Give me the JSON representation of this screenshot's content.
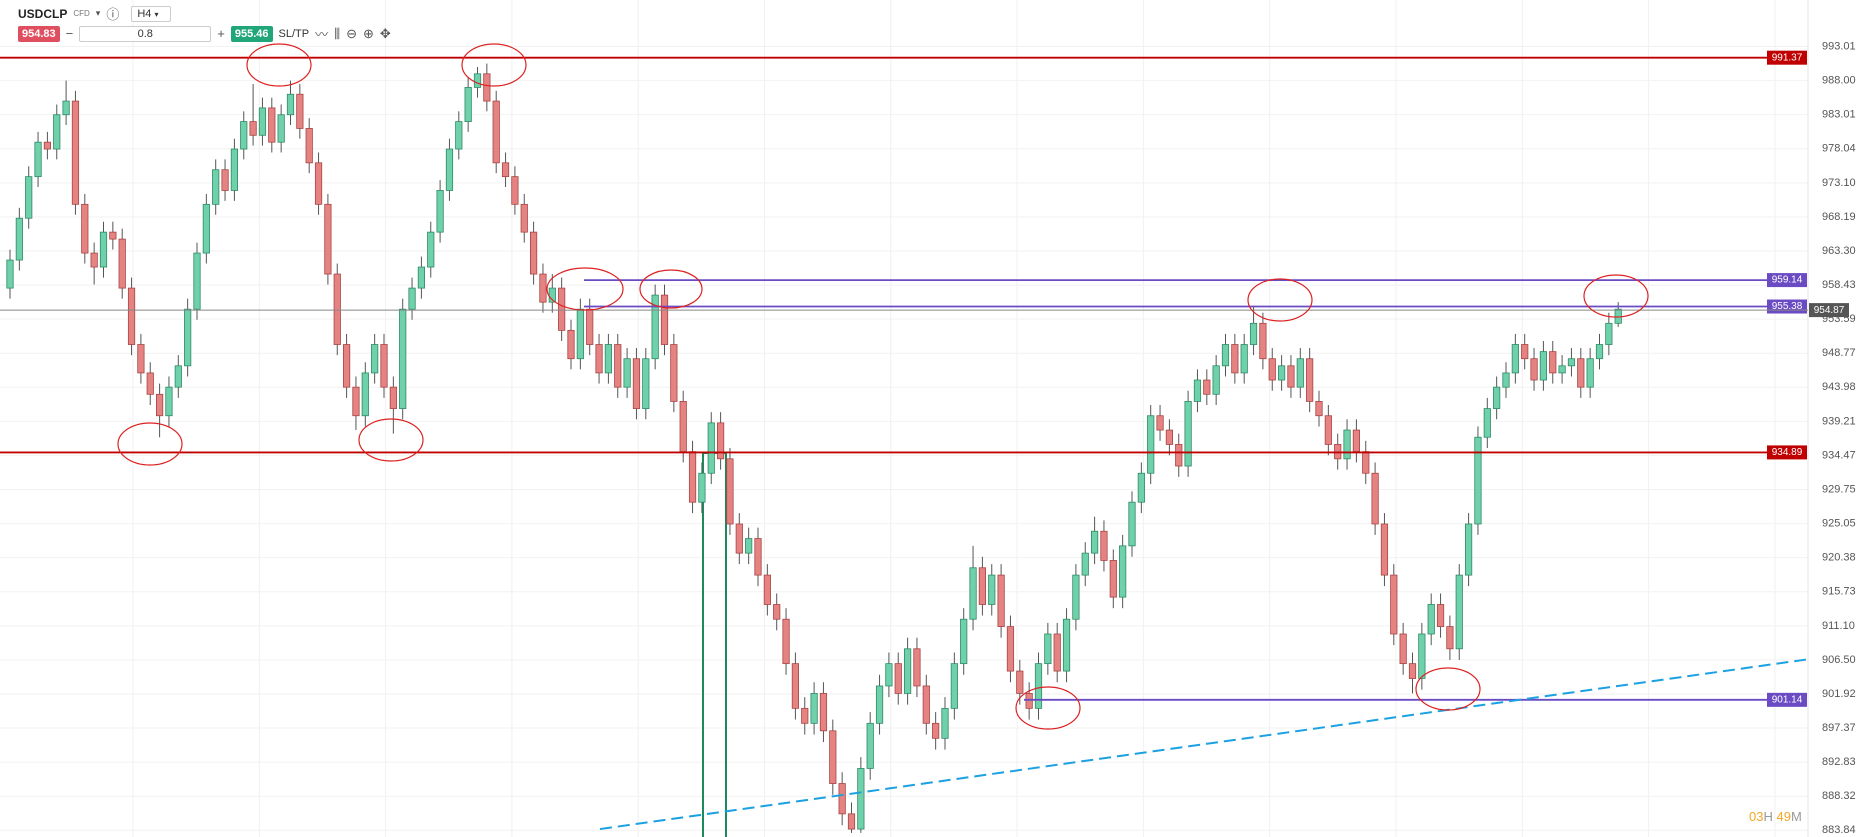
{
  "toolbar": {
    "symbol": "USDCLP",
    "kind": "CFD",
    "timeframe": "H4",
    "sell": "954.83",
    "amount": "0.8",
    "buy": "955.46",
    "sltp": "SL/TP"
  },
  "timer": {
    "hours": "03",
    "h": "H",
    "minutes": "49",
    "m": "M"
  },
  "chart_data": {
    "type": "candlestick",
    "log_scale": true,
    "grid": true,
    "up_color": "#6fd1ab",
    "down_color": "#e58383",
    "ylim": [
      883.22,
      998.42
    ],
    "yticks": [
      993.01,
      {
        "value": 988.0,
        "label": "988.00"
      },
      983.01,
      978.04,
      {
        "value": 973.1,
        "label": "973.10"
      },
      968.19,
      {
        "value": 963.3,
        "label": "963.30"
      },
      958.43,
      953.59,
      948.77,
      943.98,
      939.21,
      934.47,
      929.75,
      925.05,
      920.38,
      915.73,
      {
        "value": 911.1,
        "label": "911.10"
      },
      {
        "value": 906.5,
        "label": "906.50"
      },
      901.92,
      897.37,
      892.83,
      888.32,
      883.84
    ],
    "levels": [
      {
        "value": 991.37,
        "color": "#c00000"
      },
      {
        "value": 959.14,
        "color": "#6a4bc4"
      },
      {
        "value": 955.38,
        "color": "#6a4bc4"
      },
      {
        "value": 934.89,
        "color": "#c00000"
      },
      {
        "value": 901.14,
        "color": "#6a4bc4"
      }
    ],
    "current_price": {
      "value": 954.87,
      "color": "#888888"
    },
    "trendline": {
      "color": "#1ba1e2",
      "values": [
        884.0,
        906.55
      ]
    },
    "candles": [
      [
        958,
        963.5,
        956.5,
        962
      ],
      [
        962,
        969.5,
        960.5,
        968
      ],
      [
        968,
        975.5,
        966.5,
        974
      ],
      [
        974,
        980.5,
        972.5,
        979
      ],
      [
        979,
        980.5,
        976.5,
        978
      ],
      [
        978,
        984.5,
        976.5,
        983
      ],
      [
        983,
        988,
        981.5,
        985
      ],
      [
        985,
        986.5,
        968.5,
        970
      ],
      [
        970,
        971.5,
        961.5,
        963
      ],
      [
        963,
        964.5,
        958.5,
        961
      ],
      [
        961,
        967.5,
        959.5,
        966
      ],
      [
        966,
        967.5,
        963.5,
        965
      ],
      [
        965,
        966.5,
        956.5,
        958
      ],
      [
        958,
        959.5,
        948.5,
        950
      ],
      [
        950,
        951.5,
        944.5,
        946
      ],
      [
        946,
        947.5,
        941.5,
        943
      ],
      [
        943,
        944.5,
        937,
        940
      ],
      [
        940,
        945.5,
        938.5,
        944
      ],
      [
        944,
        948.5,
        942.5,
        947
      ],
      [
        947,
        956.5,
        945.5,
        955
      ],
      [
        955,
        964.5,
        953.5,
        963
      ],
      [
        963,
        971.5,
        961.5,
        970
      ],
      [
        970,
        976.5,
        968.5,
        975
      ],
      [
        975,
        976.5,
        970.5,
        972
      ],
      [
        972,
        979.5,
        970.5,
        978
      ],
      [
        978,
        983.5,
        976.5,
        982
      ],
      [
        982,
        987.5,
        978.5,
        980
      ],
      [
        980,
        985.5,
        978.5,
        984
      ],
      [
        984,
        985.5,
        977.5,
        979
      ],
      [
        979,
        984.5,
        977.5,
        983
      ],
      [
        983,
        988,
        981.5,
        986
      ],
      [
        986,
        987.5,
        979.5,
        981
      ],
      [
        981,
        982.5,
        974.5,
        976
      ],
      [
        976,
        977.5,
        968.5,
        970
      ],
      [
        970,
        971.5,
        958.5,
        960
      ],
      [
        960,
        961.5,
        948.5,
        950
      ],
      [
        950,
        951.5,
        942.5,
        944
      ],
      [
        944,
        945.5,
        938,
        940
      ],
      [
        940,
        947.5,
        938.5,
        946
      ],
      [
        946,
        951.5,
        944.5,
        950
      ],
      [
        950,
        951.5,
        942.5,
        944
      ],
      [
        944,
        945.5,
        937.5,
        941
      ],
      [
        941,
        956.5,
        939.5,
        955
      ],
      [
        955,
        959.5,
        953.5,
        958
      ],
      [
        958,
        962.5,
        956.5,
        961
      ],
      [
        961,
        967.5,
        959.5,
        966
      ],
      [
        966,
        973.5,
        964.5,
        972
      ],
      [
        972,
        979.5,
        970.5,
        978
      ],
      [
        978,
        983.5,
        976.5,
        982
      ],
      [
        982,
        988.5,
        980.5,
        987
      ],
      [
        987,
        990,
        985.5,
        989
      ],
      [
        989,
        990.5,
        983.5,
        985
      ],
      [
        985,
        986.5,
        974.5,
        976
      ],
      [
        976,
        977.5,
        972.5,
        974
      ],
      [
        974,
        975.5,
        968.5,
        970
      ],
      [
        970,
        971.5,
        964.5,
        966
      ],
      [
        966,
        967.5,
        958.5,
        960
      ],
      [
        960,
        961.5,
        954.5,
        956
      ],
      [
        956,
        960,
        954.5,
        958
      ],
      [
        958,
        959.5,
        950.5,
        952
      ],
      [
        952,
        953.5,
        946.5,
        948
      ],
      [
        948,
        956.5,
        946.5,
        955
      ],
      [
        955,
        956.5,
        948.5,
        950
      ],
      [
        950,
        951.5,
        944.5,
        946
      ],
      [
        946,
        951.5,
        944.5,
        950
      ],
      [
        950,
        951.5,
        942.5,
        944
      ],
      [
        944,
        949.5,
        942.5,
        948
      ],
      [
        948,
        949.5,
        939.5,
        941
      ],
      [
        941,
        949.5,
        939.5,
        948
      ],
      [
        948,
        958.5,
        946.5,
        957
      ],
      [
        957,
        958.5,
        948.5,
        950
      ],
      [
        950,
        951.5,
        940.5,
        942
      ],
      [
        942,
        943.5,
        933.5,
        935
      ],
      [
        935,
        936.5,
        926.5,
        928
      ],
      [
        928,
        933.5,
        926.5,
        932
      ],
      [
        932,
        940.5,
        930.5,
        939
      ],
      [
        939,
        940.5,
        932.5,
        934
      ],
      [
        934,
        935.5,
        923.5,
        925
      ],
      [
        925,
        926.5,
        919.5,
        921
      ],
      [
        921,
        924.5,
        919.5,
        923
      ],
      [
        923,
        924.5,
        916.5,
        918
      ],
      [
        918,
        919.5,
        912.5,
        914
      ],
      [
        914,
        915.5,
        910.5,
        912
      ],
      [
        912,
        913.5,
        904.5,
        906
      ],
      [
        906,
        907.5,
        898.5,
        900
      ],
      [
        900,
        901.5,
        896.5,
        898
      ],
      [
        898,
        903.5,
        896.5,
        902
      ],
      [
        902,
        903.5,
        895.5,
        897
      ],
      [
        897,
        898.5,
        888.5,
        890
      ],
      [
        890,
        891.5,
        884.5,
        886
      ],
      [
        886,
        887.5,
        883.5,
        884
      ],
      [
        884,
        893.5,
        883.5,
        892
      ],
      [
        892,
        899.5,
        890.5,
        898
      ],
      [
        898,
        904.5,
        896.5,
        903
      ],
      [
        903,
        907.5,
        901.5,
        906
      ],
      [
        906,
        907.5,
        900.5,
        902
      ],
      [
        902,
        909.5,
        900.5,
        908
      ],
      [
        908,
        909.5,
        901.5,
        903
      ],
      [
        903,
        904.5,
        896.5,
        898
      ],
      [
        898,
        899.5,
        894.5,
        896
      ],
      [
        896,
        901.5,
        894.5,
        900
      ],
      [
        900,
        907.5,
        898.5,
        906
      ],
      [
        906,
        913.5,
        904.5,
        912
      ],
      [
        912,
        922,
        910.5,
        919
      ],
      [
        919,
        920.5,
        912.5,
        914
      ],
      [
        914,
        919.5,
        912.5,
        918
      ],
      [
        918,
        919.5,
        909.5,
        911
      ],
      [
        911,
        912.5,
        903.5,
        905
      ],
      [
        905,
        906.5,
        900.5,
        902
      ],
      [
        902,
        903.5,
        898.5,
        900
      ],
      [
        900,
        907.5,
        898.5,
        906
      ],
      [
        906,
        911.5,
        904.5,
        910
      ],
      [
        910,
        911.5,
        903.5,
        905
      ],
      [
        905,
        913.5,
        903.5,
        912
      ],
      [
        912,
        919.5,
        910.5,
        918
      ],
      [
        918,
        922.5,
        916.5,
        921
      ],
      [
        921,
        926,
        919.5,
        924
      ],
      [
        924,
        925.5,
        918.5,
        920
      ],
      [
        920,
        921.5,
        913.5,
        915
      ],
      [
        915,
        923.5,
        913.5,
        922
      ],
      [
        922,
        929.5,
        920.5,
        928
      ],
      [
        928,
        933.5,
        926.5,
        932
      ],
      [
        932,
        941.5,
        930.5,
        940
      ],
      [
        940,
        941.5,
        936.5,
        938
      ],
      [
        938,
        939.5,
        934.5,
        936
      ],
      [
        936,
        937.5,
        931.5,
        933
      ],
      [
        933,
        943.5,
        931.5,
        942
      ],
      [
        942,
        946.5,
        940.5,
        945
      ],
      [
        945,
        946.5,
        941.5,
        943
      ],
      [
        943,
        948.5,
        941.5,
        947
      ],
      [
        947,
        951.5,
        945.5,
        950
      ],
      [
        950,
        951.5,
        944.5,
        946
      ],
      [
        946,
        951.5,
        944.5,
        950
      ],
      [
        950,
        955.5,
        948.5,
        953
      ],
      [
        953,
        954.5,
        946.5,
        948
      ],
      [
        948,
        949.5,
        943.5,
        945
      ],
      [
        945,
        948.5,
        943.5,
        947
      ],
      [
        947,
        948.5,
        942.5,
        944
      ],
      [
        944,
        949.5,
        942.5,
        948
      ],
      [
        948,
        949.5,
        940.5,
        942
      ],
      [
        942,
        943.5,
        938.5,
        940
      ],
      [
        940,
        941.5,
        934.5,
        936
      ],
      [
        936,
        937.5,
        932.5,
        934
      ],
      [
        934,
        939.5,
        932.5,
        938
      ],
      [
        938,
        939.5,
        933.5,
        935
      ],
      [
        935,
        936.5,
        930.5,
        932
      ],
      [
        932,
        933.5,
        923.5,
        925
      ],
      [
        925,
        926.5,
        916.5,
        918
      ],
      [
        918,
        919.5,
        908.5,
        910
      ],
      [
        910,
        911.5,
        904.5,
        906
      ],
      [
        906,
        907.5,
        902,
        904
      ],
      [
        904,
        911.5,
        902.5,
        910
      ],
      [
        910,
        915.5,
        908.5,
        914
      ],
      [
        914,
        915.5,
        909.5,
        911
      ],
      [
        911,
        912.5,
        906.5,
        908
      ],
      [
        908,
        919.5,
        906.5,
        918
      ],
      [
        918,
        926.5,
        916.5,
        925
      ],
      [
        925,
        938.5,
        923.5,
        937
      ],
      [
        937,
        942.5,
        935.5,
        941
      ],
      [
        941,
        945.5,
        939.5,
        944
      ],
      [
        944,
        947.5,
        942.5,
        946
      ],
      [
        946,
        951.5,
        944.5,
        950
      ],
      [
        950,
        951.5,
        946.5,
        948
      ],
      [
        948,
        949.5,
        943.5,
        945
      ],
      [
        945,
        950.5,
        943.5,
        949
      ],
      [
        949,
        950.5,
        944.5,
        946
      ],
      [
        946,
        948.5,
        944.5,
        947
      ],
      [
        947,
        949.5,
        945.5,
        948
      ],
      [
        948,
        949.5,
        942.5,
        944
      ],
      [
        944,
        949.5,
        942.5,
        948
      ],
      [
        948,
        951.5,
        946.5,
        950
      ],
      [
        950,
        954.5,
        948.5,
        953
      ],
      [
        953,
        956,
        952.5,
        955
      ]
    ]
  }
}
